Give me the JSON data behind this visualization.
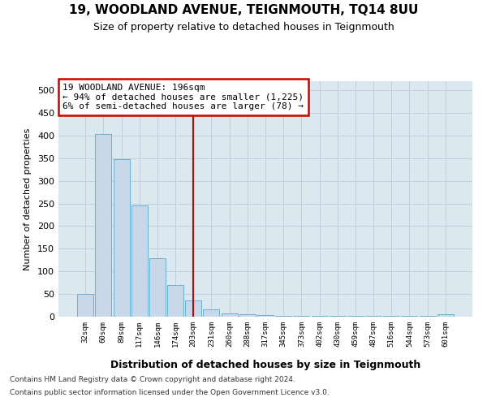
{
  "title1": "19, WOODLAND AVENUE, TEIGNMOUTH, TQ14 8UU",
  "title2": "Size of property relative to detached houses in Teignmouth",
  "xlabel": "Distribution of detached houses by size in Teignmouth",
  "ylabel": "Number of detached properties",
  "footnote1": "Contains HM Land Registry data © Crown copyright and database right 2024.",
  "footnote2": "Contains public sector information licensed under the Open Government Licence v3.0.",
  "annotation_line1": "19 WOODLAND AVENUE: 196sqm",
  "annotation_line2": "← 94% of detached houses are smaller (1,225)",
  "annotation_line3": "6% of semi-detached houses are larger (78) →",
  "bin_labels": [
    "32sqm",
    "60sqm",
    "89sqm",
    "117sqm",
    "146sqm",
    "174sqm",
    "203sqm",
    "231sqm",
    "260sqm",
    "288sqm",
    "317sqm",
    "345sqm",
    "373sqm",
    "402sqm",
    "430sqm",
    "459sqm",
    "487sqm",
    "516sqm",
    "544sqm",
    "573sqm",
    "601sqm"
  ],
  "bar_heights": [
    50,
    403,
    347,
    245,
    130,
    70,
    35,
    17,
    8,
    5,
    3,
    2,
    1,
    1,
    1,
    1,
    1,
    1,
    1,
    1,
    5
  ],
  "bar_color": "#c8d8e8",
  "bar_edge_color": "#6baed6",
  "red_line_index": 6,
  "red_line_color": "#cc0000",
  "annotation_box_edge_color": "#cc0000",
  "background_color": "#dce8f0",
  "grid_color": "#c0cfd8",
  "ylim": [
    0,
    520
  ],
  "yticks": [
    0,
    50,
    100,
    150,
    200,
    250,
    300,
    350,
    400,
    450,
    500
  ]
}
